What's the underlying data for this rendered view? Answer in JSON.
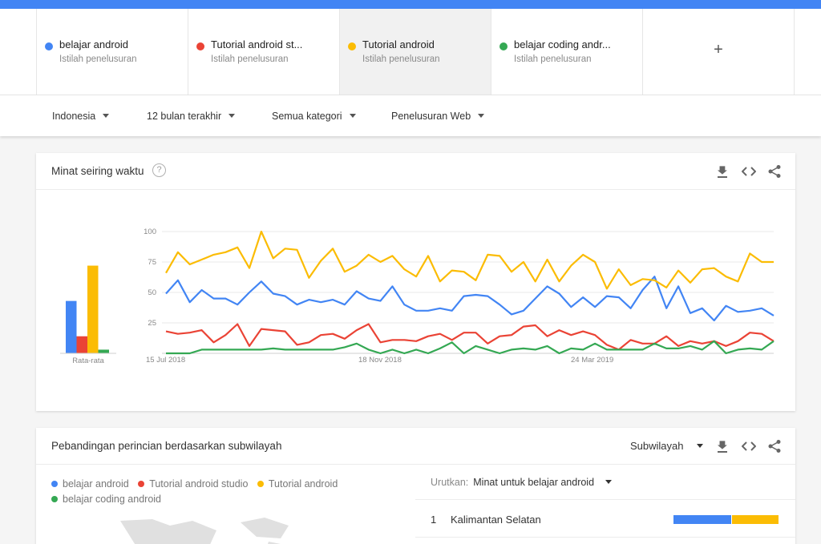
{
  "terms": [
    {
      "name": "belajar android",
      "sub": "Istilah penelusuran",
      "color": "#4285f4",
      "active": false
    },
    {
      "name": "Tutorial android st...",
      "sub": "Istilah penelusuran",
      "color": "#ea4335",
      "active": false
    },
    {
      "name": "Tutorial android",
      "sub": "Istilah penelusuran",
      "color": "#fbbc04",
      "active": true
    },
    {
      "name": "belajar coding andr...",
      "sub": "Istilah penelusuran",
      "color": "#34a853",
      "active": false
    }
  ],
  "add_term_label": "+",
  "filters": {
    "region": "Indonesia",
    "period": "12 bulan terakhir",
    "category": "Semua kategori",
    "search_type": "Penelusuran Web"
  },
  "interest_card": {
    "title": "Minat seiring waktu",
    "help_label": "?",
    "icons": [
      "download-icon",
      "embed-icon",
      "share-icon"
    ]
  },
  "chart_data": {
    "type": "line",
    "title": "Minat seiring waktu",
    "x_ticks": [
      "15 Jul 2018",
      "18 Nov 2018",
      "24 Mar 2019"
    ],
    "y_ticks": [
      "100",
      "75",
      "50",
      "25"
    ],
    "ylim": [
      0,
      100
    ],
    "grid": true,
    "average": {
      "label": "Rata-rata",
      "values": [
        43,
        14,
        72,
        3
      ]
    },
    "series": [
      {
        "name": "belajar android",
        "color": "#4285f4",
        "values": [
          49,
          60,
          42,
          52,
          45,
          45,
          40,
          50,
          59,
          49,
          47,
          40,
          44,
          42,
          44,
          40,
          51,
          45,
          43,
          55,
          40,
          35,
          35,
          37,
          35,
          47,
          48,
          47,
          40,
          32,
          35,
          45,
          55,
          49,
          38,
          46,
          38,
          47,
          46,
          37,
          52,
          63,
          37,
          55,
          33,
          37,
          27,
          39,
          34,
          35,
          37,
          31
        ]
      },
      {
        "name": "Tutorial android studio",
        "color": "#ea4335",
        "values": [
          18,
          16,
          17,
          19,
          9,
          15,
          24,
          6,
          20,
          19,
          18,
          7,
          9,
          15,
          16,
          12,
          19,
          24,
          9,
          11,
          11,
          10,
          14,
          16,
          11,
          17,
          17,
          8,
          14,
          15,
          22,
          23,
          14,
          19,
          15,
          18,
          15,
          7,
          3,
          11,
          8,
          8,
          14,
          6,
          10,
          8,
          10,
          6,
          10,
          17,
          16,
          10
        ]
      },
      {
        "name": "Tutorial android",
        "color": "#fbbc04",
        "values": [
          66,
          83,
          73,
          77,
          81,
          83,
          87,
          70,
          100,
          78,
          86,
          85,
          62,
          76,
          86,
          67,
          72,
          81,
          75,
          80,
          69,
          63,
          80,
          59,
          68,
          67,
          60,
          81,
          80,
          67,
          75,
          59,
          77,
          59,
          72,
          81,
          75,
          53,
          69,
          56,
          61,
          60,
          54,
          68,
          58,
          69,
          70,
          63,
          59,
          82,
          75,
          75
        ]
      },
      {
        "name": "belajar coding android",
        "color": "#34a853",
        "values": [
          0,
          0,
          0,
          3,
          3,
          3,
          3,
          3,
          3,
          4,
          3,
          3,
          3,
          3,
          3,
          5,
          8,
          3,
          0,
          3,
          0,
          3,
          0,
          4,
          9,
          0,
          6,
          3,
          0,
          3,
          4,
          3,
          6,
          0,
          4,
          3,
          8,
          3,
          3,
          3,
          3,
          8,
          4,
          4,
          6,
          3,
          10,
          0,
          3,
          4,
          3,
          10
        ]
      }
    ]
  },
  "region_card": {
    "title": "Pebandingan perincian berdasarkan subwilayah",
    "granularity": "Subwilayah",
    "legend": [
      "belajar android",
      "Tutorial android studio",
      "Tutorial android",
      "belajar coding android"
    ],
    "sort_label": "Urutkan:",
    "sort_value": "Minat untuk belajar android",
    "rows": [
      {
        "rank": "1",
        "region": "Kalimantan Selatan",
        "shares": [
          0.55,
          0,
          0.45,
          0
        ]
      }
    ]
  }
}
